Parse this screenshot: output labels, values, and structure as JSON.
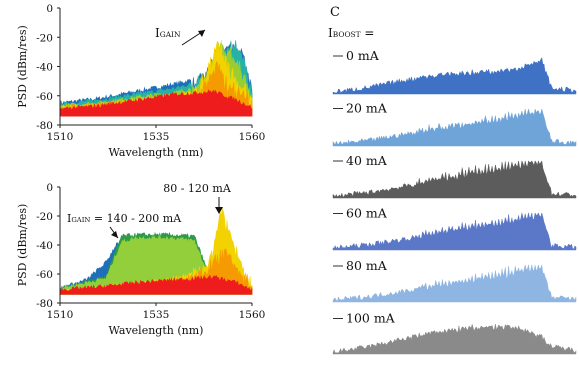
{
  "chart_data": [
    {
      "type": "area",
      "panel": "a",
      "xlabel": "Wavelength  (nm)",
      "ylabel": "PSD (dBm/res)",
      "xlim": [
        1510,
        1560
      ],
      "ylim": [
        -80,
        0
      ],
      "xticks": [
        "1510",
        "1535",
        "1560"
      ],
      "yticks": [
        "0",
        "-20",
        "-40",
        "-60",
        "-80"
      ],
      "annotation": {
        "main": "I",
        "sub": "GAIN"
      },
      "series": [
        {
          "color": "#1f6fb8",
          "x": [
            1510,
            1520,
            1530,
            1540,
            1546,
            1550,
            1553,
            1556,
            1558,
            1560
          ],
          "values": [
            -65,
            -62,
            -57,
            -52,
            -48,
            -38,
            -28,
            -24,
            -34,
            -55
          ],
          "spiky": true
        },
        {
          "color": "#26b3a6",
          "x": [
            1510,
            1520,
            1530,
            1540,
            1546,
            1550,
            1553,
            1556,
            1558,
            1560
          ],
          "values": [
            -66,
            -63,
            -59,
            -55,
            -51,
            -42,
            -30,
            -26,
            -36,
            -57
          ],
          "spiky": true
        },
        {
          "color": "#9acd32",
          "x": [
            1510,
            1520,
            1530,
            1540,
            1546,
            1549,
            1551,
            1554,
            1557,
            1560
          ],
          "values": [
            -67,
            -65,
            -61,
            -58,
            -54,
            -44,
            -24,
            -28,
            -44,
            -60
          ],
          "spiky": true
        },
        {
          "color": "#f2d200",
          "x": [
            1510,
            1520,
            1530,
            1540,
            1546,
            1549,
            1551,
            1553,
            1556,
            1560
          ],
          "values": [
            -68,
            -66,
            -63,
            -61,
            -56,
            -40,
            -22,
            -34,
            -50,
            -63
          ],
          "spiky": true
        },
        {
          "color": "#f59a00",
          "x": [
            1510,
            1520,
            1530,
            1540,
            1546,
            1549,
            1551,
            1554,
            1560
          ],
          "values": [
            -68,
            -66,
            -64,
            -62,
            -59,
            -48,
            -36,
            -54,
            -64
          ],
          "spiky": true
        },
        {
          "color": "#ee1c1c",
          "x": [
            1510,
            1520,
            1530,
            1540,
            1546,
            1550,
            1556,
            1560
          ],
          "values": [
            -69,
            -67,
            -63,
            -59,
            -58,
            -57,
            -63,
            -68
          ],
          "spiky": false
        }
      ]
    },
    {
      "type": "area",
      "panel": "b",
      "xlabel": "Wavelength  (nm)",
      "ylabel": "PSD (dBm/res)",
      "xlim": [
        1510,
        1560
      ],
      "ylim": [
        -80,
        0
      ],
      "xticks": [
        "1510",
        "1535",
        "1560"
      ],
      "yticks": [
        "0",
        "-20",
        "-40",
        "-60",
        "-80"
      ],
      "annotations": [
        {
          "main": "I",
          "sub": "GAIN",
          "rest": " = 140 - 200 mA"
        },
        {
          "text": "80 - 120 mA"
        }
      ],
      "series": [
        {
          "color": "#1f6fb8",
          "x": [
            1510,
            1517,
            1522,
            1525,
            1527,
            1529,
            1532,
            1540,
            1546,
            1560
          ],
          "values": [
            -70,
            -64,
            -52,
            -38,
            -47,
            -58,
            -62,
            -63,
            -64,
            -70
          ],
          "spiky": false
        },
        {
          "color": "#2e9a4a",
          "x": [
            1510,
            1522,
            1526,
            1530,
            1538,
            1545,
            1548,
            1552,
            1560
          ],
          "values": [
            -70,
            -62,
            -34,
            -33,
            -33,
            -34,
            -55,
            -63,
            -70
          ],
          "spiky": false
        },
        {
          "color": "#93cf3a",
          "x": [
            1510,
            1522,
            1526,
            1530,
            1538,
            1545,
            1548,
            1552,
            1560
          ],
          "values": [
            -70,
            -63,
            -38,
            -35,
            -35,
            -37,
            -57,
            -63,
            -70
          ],
          "spiky": false
        },
        {
          "color": "#f2d200",
          "x": [
            1510,
            1530,
            1542,
            1548,
            1550,
            1552,
            1554,
            1556,
            1558,
            1560
          ],
          "values": [
            -72,
            -67,
            -62,
            -55,
            -42,
            -14,
            -30,
            -45,
            -58,
            -70
          ],
          "spiky": true
        },
        {
          "color": "#f59a00",
          "x": [
            1510,
            1530,
            1542,
            1548,
            1551,
            1553,
            1556,
            1560
          ],
          "values": [
            -72,
            -67,
            -64,
            -58,
            -48,
            -42,
            -56,
            -70
          ],
          "spiky": true
        },
        {
          "color": "#ee1c1c",
          "x": [
            1510,
            1520,
            1530,
            1540,
            1546,
            1550,
            1556,
            1560
          ],
          "values": [
            -71,
            -69,
            -66,
            -64,
            -63,
            -62,
            -66,
            -71
          ],
          "spiky": false
        }
      ]
    },
    {
      "type": "area",
      "panel": "c",
      "panel_label": "C",
      "legend_title": {
        "main": "I",
        "sub": "BOOST",
        "rest": " ="
      },
      "x_relative": [
        0,
        0.15,
        0.3,
        0.45,
        0.6,
        0.72,
        0.8,
        0.86,
        0.9,
        1.0
      ],
      "series": [
        {
          "name": "0 mA",
          "color": "#3f72c4",
          "level": [
            0.05,
            0.18,
            0.38,
            0.52,
            0.58,
            0.62,
            0.78,
            0.9,
            0.15,
            0.1
          ],
          "teeth": 0.1
        },
        {
          "name": "20 mA",
          "color": "#6fa4d9",
          "level": [
            0.05,
            0.15,
            0.32,
            0.48,
            0.62,
            0.72,
            0.82,
            0.9,
            0.12,
            0.08
          ],
          "teeth": 0.45
        },
        {
          "name": "40 mA",
          "color": "#5c5c5c",
          "level": [
            0.05,
            0.15,
            0.32,
            0.5,
            0.66,
            0.78,
            0.9,
            0.92,
            0.12,
            0.08
          ],
          "teeth": 0.55
        },
        {
          "name": "60 mA",
          "color": "#5b78c8",
          "level": [
            0.05,
            0.15,
            0.3,
            0.48,
            0.62,
            0.74,
            0.86,
            0.9,
            0.12,
            0.08
          ],
          "teeth": 0.5
        },
        {
          "name": "80 mA",
          "color": "#8fb5e3",
          "level": [
            0.05,
            0.15,
            0.3,
            0.46,
            0.6,
            0.72,
            0.84,
            0.88,
            0.12,
            0.08
          ],
          "teeth": 0.5
        },
        {
          "name": "100 mA",
          "color": "#8a8a8a",
          "level": [
            0.05,
            0.2,
            0.42,
            0.6,
            0.7,
            0.72,
            0.6,
            0.45,
            0.2,
            0.1
          ],
          "teeth": 0.2
        }
      ]
    }
  ]
}
